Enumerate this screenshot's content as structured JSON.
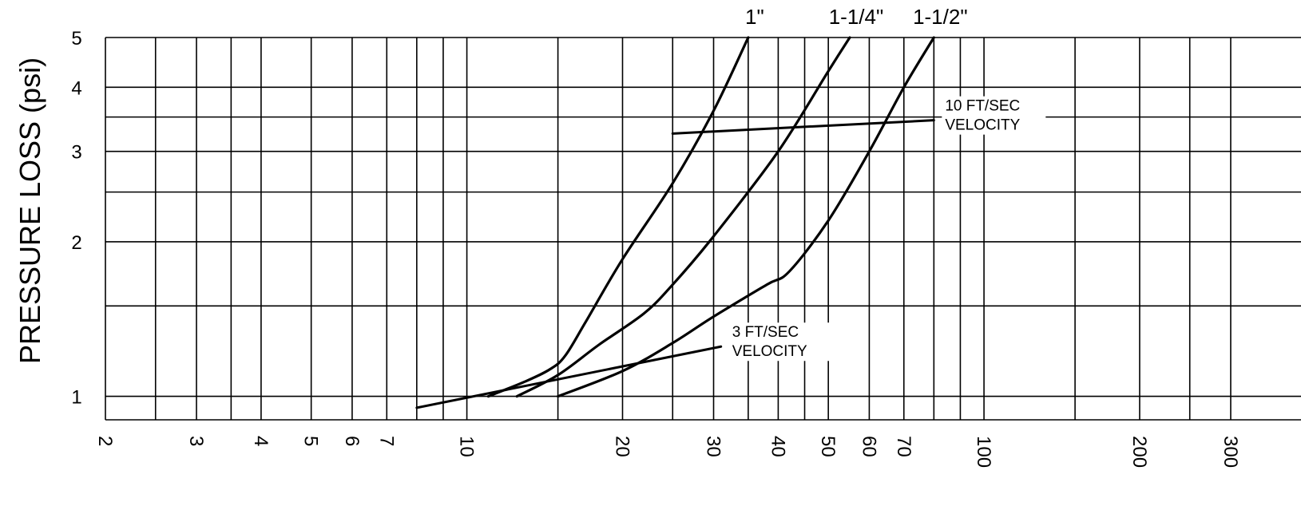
{
  "chart_data": {
    "type": "line",
    "title": "",
    "xlabel": "",
    "ylabel": "PRESSURE LOSS (psi)",
    "x_scale": "log",
    "y_scale": "log",
    "xlim": [
      2,
      300
    ],
    "ylim": [
      0.9,
      5
    ],
    "grid": true,
    "x_ticks": [
      2,
      3,
      4,
      5,
      6,
      7,
      10,
      20,
      30,
      40,
      50,
      60,
      70,
      100,
      200,
      300
    ],
    "x_tick_labels": [
      "2",
      "3",
      "4",
      "5",
      "6",
      "7",
      "10",
      "20",
      "30",
      "40",
      "50",
      "60",
      "70",
      "100",
      "200",
      "300"
    ],
    "x_gridlines": [
      2,
      2.5,
      3,
      3.5,
      4,
      5,
      6,
      7,
      8,
      9,
      10,
      15,
      20,
      25,
      30,
      35,
      40,
      45,
      50,
      60,
      70,
      80,
      90,
      100,
      150,
      200,
      250,
      300
    ],
    "y_ticks": [
      1,
      2,
      3,
      4,
      5
    ],
    "y_tick_labels": [
      "1",
      "2",
      "3",
      "4",
      "5"
    ],
    "y_gridlines": [
      0.9,
      1,
      1.5,
      2,
      2.5,
      3,
      3.5,
      4,
      5
    ],
    "series": [
      {
        "name": "1\"",
        "x": [
          11,
          13,
          14.5,
          15.5,
          17,
          20,
          25,
          30,
          35
        ],
        "y": [
          1.0,
          1.07,
          1.13,
          1.2,
          1.4,
          1.85,
          2.6,
          3.6,
          5.0
        ]
      },
      {
        "name": "1-1/4\"",
        "x": [
          12.5,
          15,
          18,
          22,
          25,
          30,
          40,
          50,
          55
        ],
        "y": [
          1.0,
          1.1,
          1.26,
          1.45,
          1.65,
          2.05,
          3.0,
          4.3,
          5.0
        ]
      },
      {
        "name": "1-1/2\"",
        "x": [
          15,
          20,
          25,
          30,
          38,
          42,
          50,
          60,
          70,
          80
        ],
        "y": [
          1.0,
          1.12,
          1.27,
          1.43,
          1.65,
          1.75,
          2.2,
          3.0,
          4.0,
          5.0
        ]
      }
    ],
    "reference_lines": [
      {
        "label_lines": [
          "3 FT/SEC",
          "VELOCITY"
        ],
        "x": [
          8,
          31
        ],
        "y": [
          0.95,
          1.25
        ]
      },
      {
        "label_lines": [
          "10 FT/SEC",
          "VELOCITY"
        ],
        "x": [
          25,
          80
        ],
        "y": [
          3.25,
          3.45
        ]
      }
    ]
  }
}
